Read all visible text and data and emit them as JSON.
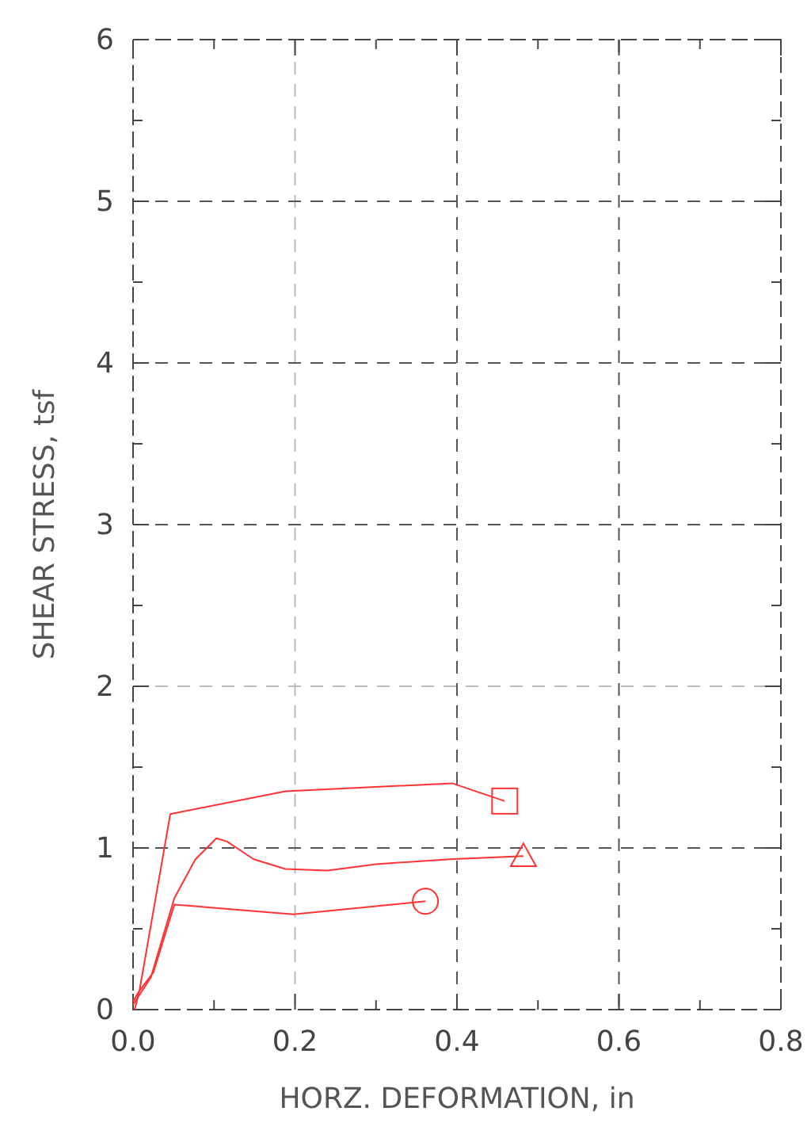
{
  "chart_data": {
    "type": "line",
    "xlabel": "HORZ. DEFORMATION, in",
    "ylabel": "SHEAR STRESS, tsf",
    "xlim": [
      0,
      0.8
    ],
    "ylim": [
      0,
      6
    ],
    "xticks": [
      {
        "value": 0,
        "label": "0.0"
      },
      {
        "value": 0.1,
        "label": null
      },
      {
        "value": 0.2,
        "label": "0.2"
      },
      {
        "value": 0.3,
        "label": null
      },
      {
        "value": 0.4,
        "label": "0.4"
      },
      {
        "value": 0.5,
        "label": null
      },
      {
        "value": 0.6,
        "label": "0.6"
      },
      {
        "value": 0.7,
        "label": null
      },
      {
        "value": 0.8,
        "label": "0.8"
      }
    ],
    "yticks": [
      0,
      {
        "value": 0.5,
        "label": null
      },
      1,
      {
        "value": 1.5,
        "label": null
      },
      2,
      {
        "value": 2.5,
        "label": null
      },
      3,
      {
        "value": 3.5,
        "label": null
      },
      4,
      {
        "value": 4.5,
        "label": null
      },
      5,
      {
        "value": 5.5,
        "label": null
      },
      6
    ],
    "grid": true,
    "line_style": "solid",
    "series": [
      {
        "color": "#ff3333",
        "x": [
          0.002,
          0.008,
          0.046,
          0.188,
          0.394,
          0.459
        ],
        "values": [
          0,
          0.12,
          1.21,
          1.35,
          1.4,
          1.29
        ]
      },
      {
        "color": "#ff3333",
        "x": [
          0,
          0.022,
          0.051,
          0.077,
          0.103,
          0.116,
          0.149,
          0.188,
          0.24,
          0.3,
          0.391,
          0.482
        ],
        "values": [
          0.03,
          0.2,
          0.69,
          0.93,
          1.06,
          1.04,
          0.93,
          0.87,
          0.86,
          0.9,
          0.93,
          0.95
        ]
      },
      {
        "color": "#ff3333",
        "x": [
          0,
          0.007,
          0.025,
          0.051,
          0.198,
          0.361
        ],
        "values": [
          0.05,
          0.11,
          0.23,
          0.65,
          0.59,
          0.67
        ]
      },
      {
        "type": "scatter",
        "color": "#ff3333",
        "marker": "square",
        "x": [
          0.459
        ],
        "values": [
          1.29
        ]
      },
      {
        "type": "scatter",
        "color": "#ff3333",
        "marker": "triangle",
        "x": [
          0.482
        ],
        "values": [
          0.95
        ]
      },
      {
        "type": "scatter",
        "color": "#ff3333",
        "marker": "circle",
        "x": [
          0.361
        ],
        "values": [
          0.67
        ]
      }
    ]
  }
}
